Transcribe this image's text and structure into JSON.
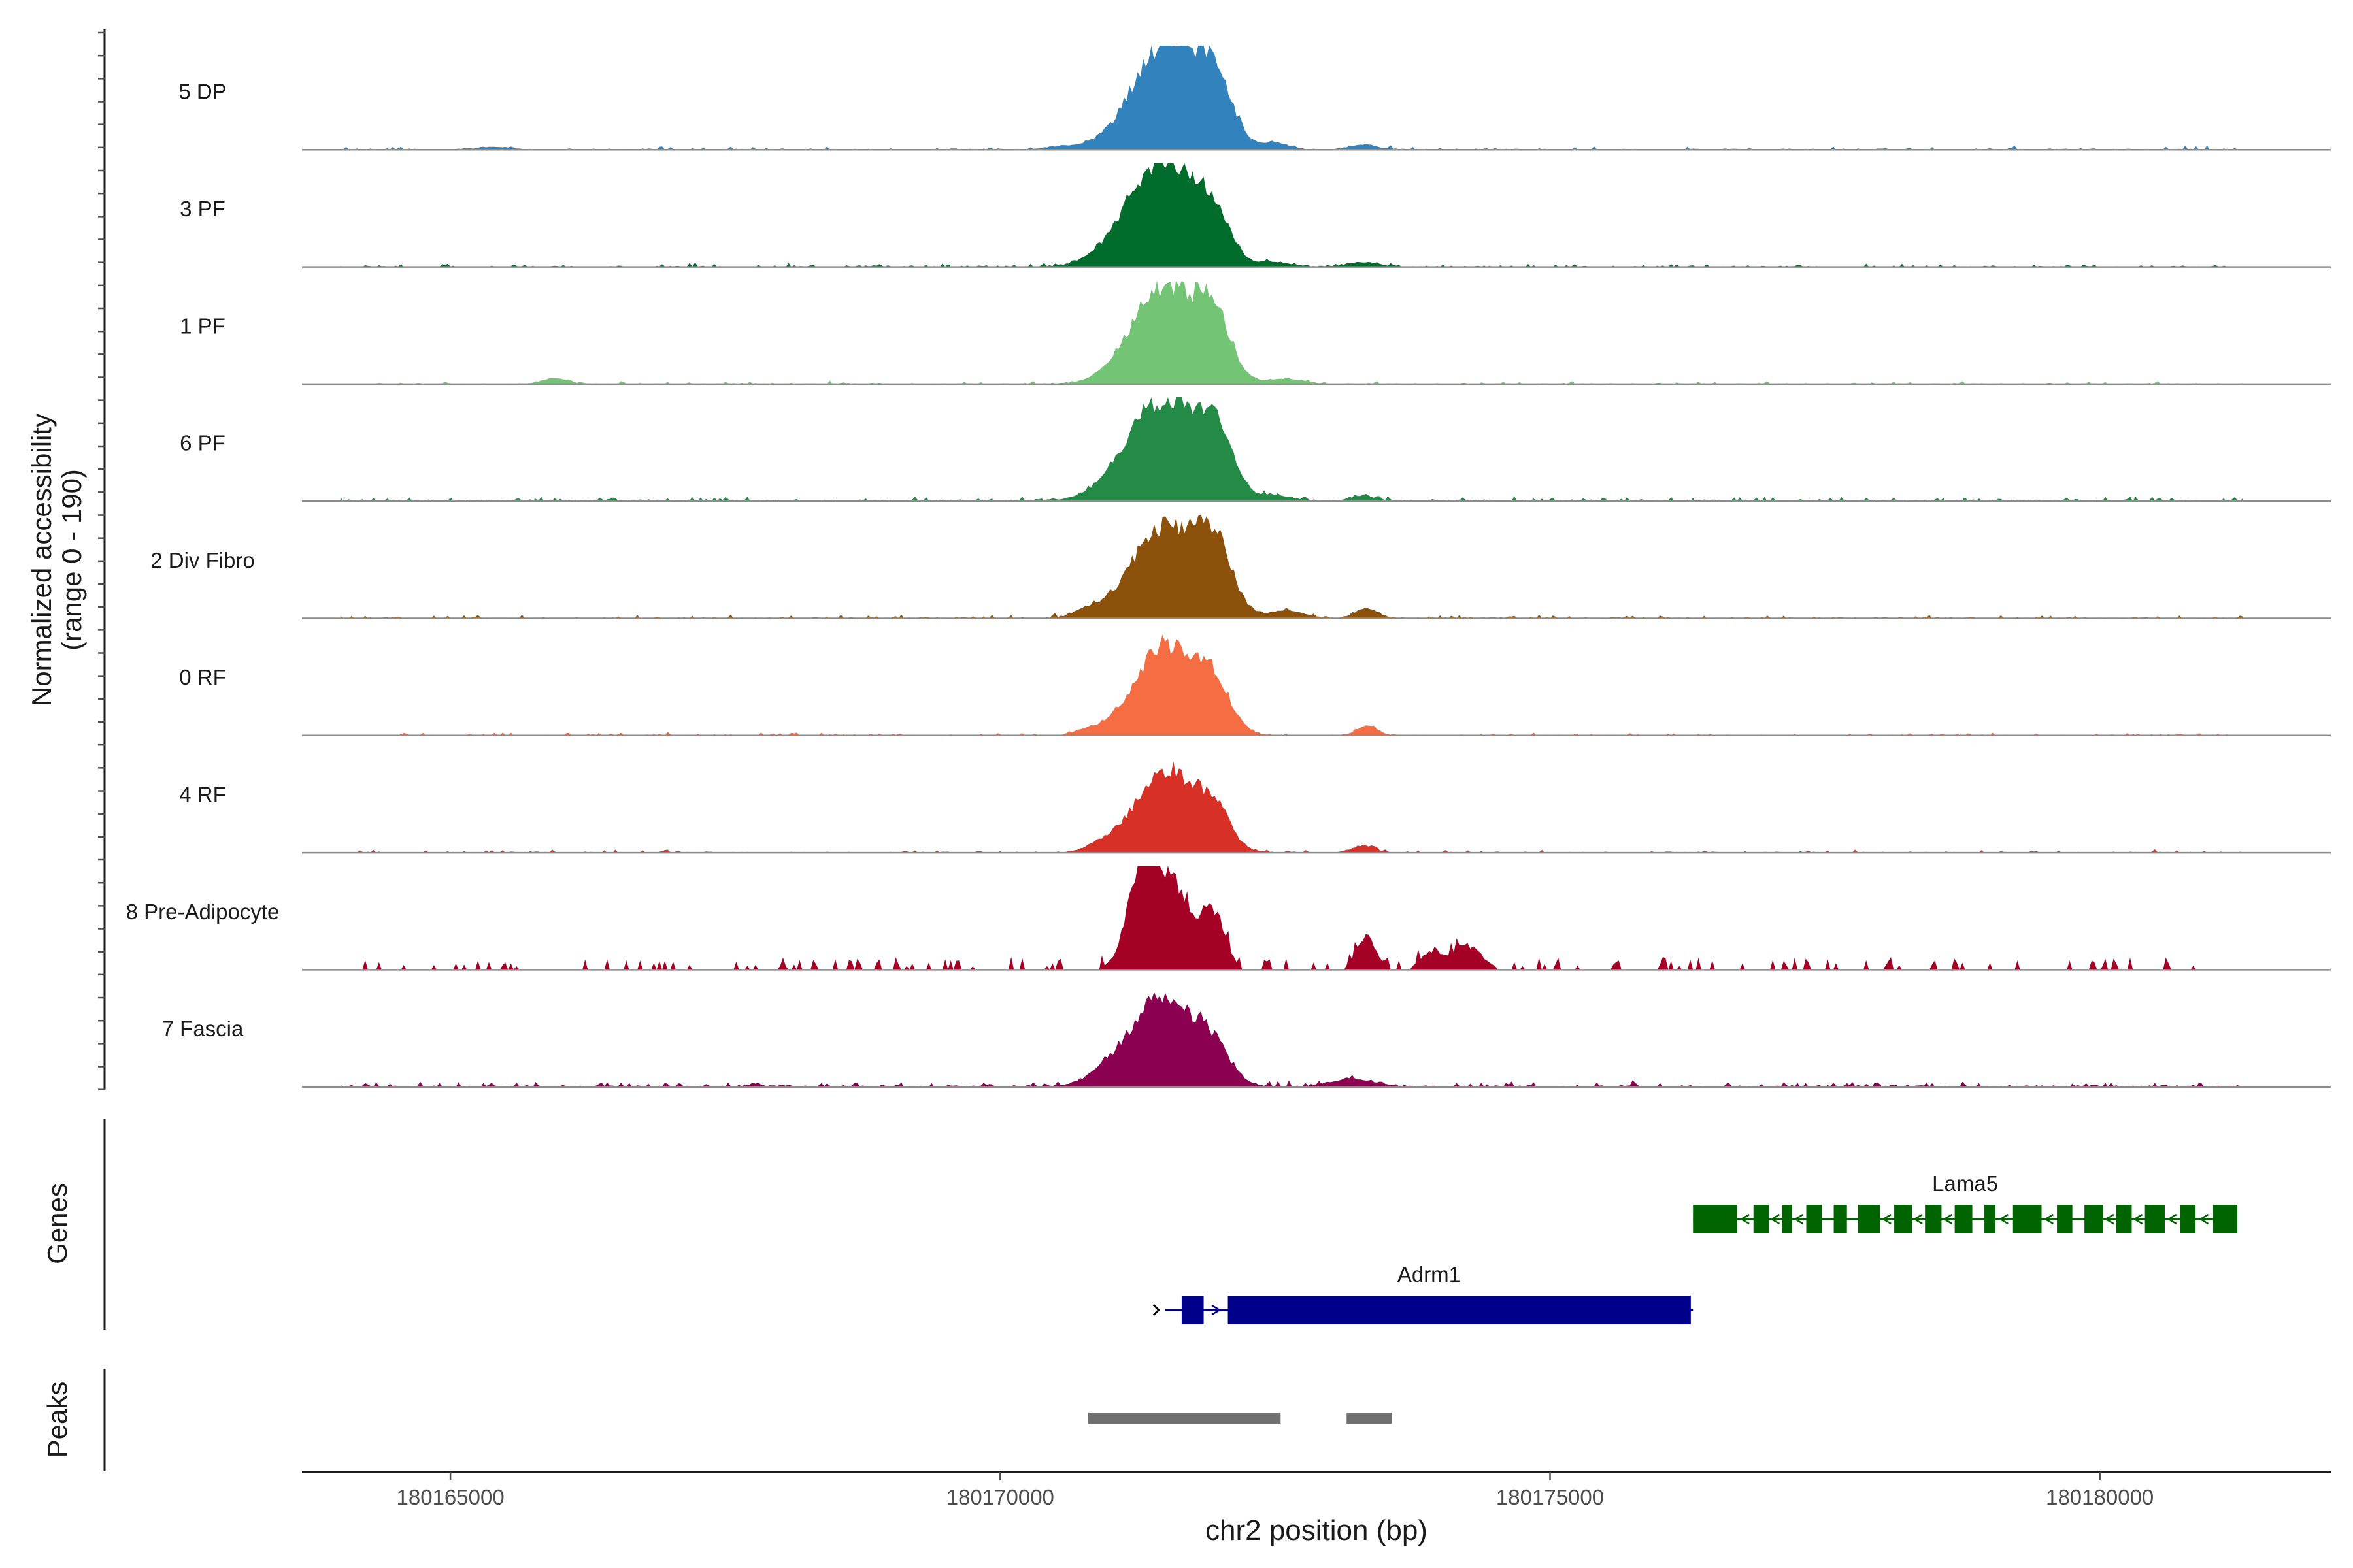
{
  "chart_data": {
    "type": "area",
    "title": "",
    "ylabel_line1": "Normalized accessibility",
    "ylabel_line2": "(range 0 - 190)",
    "y_range": [
      0,
      190
    ],
    "xlabel": "chr2 position (bp)",
    "xlim": [
      180163650,
      180182100
    ],
    "x_ticks": [
      180165000,
      180170000,
      180175000,
      180180000
    ],
    "x_tick_labels": [
      "180165000",
      "180170000",
      "180175000",
      "180180000"
    ],
    "data_extent": [
      180164000,
      180181300
    ],
    "tracks": [
      {
        "name": "5 DP",
        "color": "#3182BD",
        "peaks": [
          [
            180171500,
            190,
            300
          ],
          [
            180171950,
            105,
            160
          ],
          [
            180172500,
            12,
            120
          ],
          [
            180173300,
            9,
            120
          ],
          [
            180165400,
            5,
            150
          ],
          [
            180170600,
            5,
            200
          ]
        ],
        "noise": 3.5,
        "spike": 0.12,
        "seed": 11
      },
      {
        "name": "3 PF",
        "color": "#006D2C",
        "peaks": [
          [
            180171500,
            190,
            300
          ],
          [
            180171950,
            65,
            140
          ],
          [
            180171100,
            22,
            250
          ],
          [
            180172500,
            8,
            150
          ],
          [
            180173300,
            8,
            140
          ]
        ],
        "noise": 3.5,
        "spike": 0.15,
        "seed": 23
      },
      {
        "name": "1 PF",
        "color": "#74C476",
        "peaks": [
          [
            180171500,
            180,
            300
          ],
          [
            180171950,
            95,
            150
          ],
          [
            180165950,
            10,
            120
          ],
          [
            180172600,
            9,
            150
          ]
        ],
        "noise": 3,
        "spike": 0.1,
        "seed": 37
      },
      {
        "name": "6 PF",
        "color": "#238B45",
        "peaks": [
          [
            180171500,
            180,
            300
          ],
          [
            180171950,
            105,
            160
          ],
          [
            180171100,
            22,
            250
          ],
          [
            180172500,
            10,
            150
          ],
          [
            180173300,
            9,
            120
          ]
        ],
        "noise": 4.5,
        "spike": 0.2,
        "seed": 41
      },
      {
        "name": "2 Div Fibro",
        "color": "#8C510A",
        "peaks": [
          [
            180171500,
            170,
            300
          ],
          [
            180171950,
            110,
            160
          ],
          [
            180172600,
            14,
            150
          ],
          [
            180173330,
            18,
            100
          ],
          [
            180170800,
            14,
            120
          ]
        ],
        "noise": 3.5,
        "spike": 0.15,
        "seed": 53
      },
      {
        "name": "0 RF",
        "color": "#F46D43",
        "peaks": [
          [
            180171500,
            165,
            280
          ],
          [
            180171950,
            75,
            150
          ],
          [
            180173340,
            18,
            90
          ],
          [
            180170800,
            8,
            120
          ]
        ],
        "noise": 3,
        "spike": 0.12,
        "seed": 61
      },
      {
        "name": "4 RF",
        "color": "#D73027",
        "peaks": [
          [
            180171500,
            150,
            280
          ],
          [
            180171950,
            65,
            140
          ],
          [
            180170900,
            10,
            120
          ],
          [
            180173300,
            12,
            100
          ]
        ],
        "noise": 3,
        "spike": 0.12,
        "seed": 67
      },
      {
        "name": "8 Pre-Adipocyte",
        "color": "#A50026",
        "peaks": [
          [
            180171300,
            180,
            140
          ],
          [
            180171600,
            145,
            170
          ],
          [
            180171950,
            95,
            100
          ],
          [
            180173330,
            60,
            90
          ],
          [
            180174230,
            45,
            140
          ],
          [
            180173900,
            28,
            90
          ]
        ],
        "noise": 6,
        "spike": 0.2,
        "seed": 79,
        "sparse": true
      },
      {
        "name": "7 Fascia",
        "color": "#8B0051",
        "peaks": [
          [
            180171500,
            155,
            300
          ],
          [
            180171950,
            45,
            140
          ],
          [
            180171100,
            22,
            250
          ],
          [
            180173200,
            14,
            200
          ]
        ],
        "noise": 5,
        "spike": 0.2,
        "seed": 83
      }
    ],
    "genes_label": "Genes",
    "genes": [
      {
        "name": "Lama5",
        "color": "#006400",
        "start": 180176300,
        "end": 180181250,
        "strand": "-",
        "exons": [
          [
            180176300,
            180176700
          ],
          [
            180176850,
            180176990
          ],
          [
            180177110,
            180177200
          ],
          [
            180177330,
            180177470
          ],
          [
            180177580,
            180177700
          ],
          [
            180177800,
            180178000
          ],
          [
            180178130,
            180178290
          ],
          [
            180178410,
            180178560
          ],
          [
            180178680,
            180178840
          ],
          [
            180178950,
            180179050
          ],
          [
            180179210,
            180179470
          ],
          [
            180179610,
            180179750
          ],
          [
            180179860,
            180180030
          ],
          [
            180180150,
            180180290
          ],
          [
            180180410,
            180180590
          ],
          [
            180180730,
            180180870
          ],
          [
            180181030,
            180181250
          ]
        ]
      },
      {
        "name": "Adrm1",
        "color": "#00008B",
        "start": 180171500,
        "end": 180176300,
        "strand": "+",
        "exons": [
          [
            180171650,
            180171850
          ],
          [
            180172070,
            180176280
          ]
        ]
      }
    ],
    "peaks_label": "Peaks",
    "peak_regions": [
      [
        180170800,
        180172550
      ],
      [
        180173150,
        180173560
      ]
    ],
    "peak_color": "#707070"
  }
}
